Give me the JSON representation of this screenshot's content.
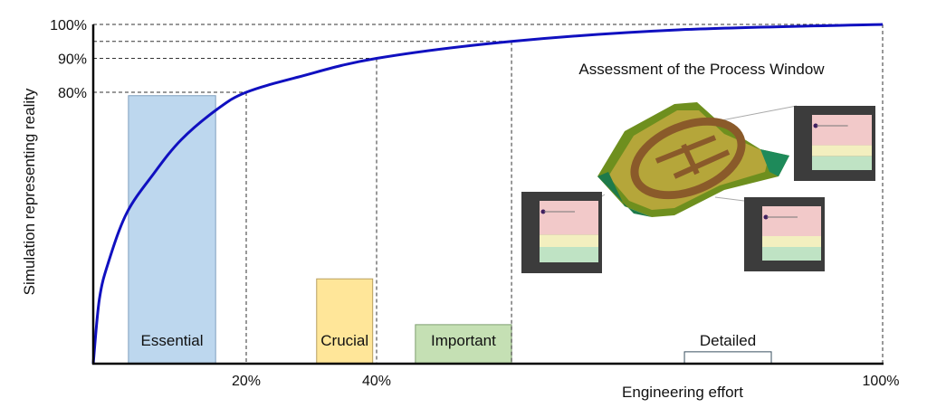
{
  "chart_data": {
    "type": "line",
    "title": "",
    "xlabel": "Engineering effort",
    "ylabel": "Simulation representing reality",
    "x_ticks": [
      "20%",
      "40%",
      "100%"
    ],
    "y_ticks": [
      "80%",
      "90%",
      "100%"
    ],
    "ylim": [
      0,
      100
    ],
    "xlim": [
      0,
      100
    ],
    "grid": false,
    "curve_color": "#1010c0",
    "series": [
      {
        "x": [
          0,
          0.8,
          2,
          4.4,
          7.9,
          11.5,
          16.2,
          20,
          28,
          40,
          56,
          75.8,
          100
        ],
        "y": [
          0,
          19,
          30,
          44.5,
          56,
          66,
          75,
          80,
          84.5,
          90,
          95,
          98.4,
          100
        ]
      }
    ],
    "reference_points": [
      {
        "x": 20,
        "y": 80
      },
      {
        "x": 40,
        "y": 90
      },
      {
        "x": 56,
        "y": 95
      },
      {
        "x": 100,
        "y": 100
      }
    ],
    "bars": [
      {
        "label": "Essential",
        "x_start": 4.6,
        "x_end": 16,
        "value": 79,
        "color": "#bdd7ee",
        "stroke": "#7f9fbf"
      },
      {
        "label": "Crucial",
        "x_start": 30.8,
        "x_end": 39.4,
        "value": 25,
        "color": "#ffe699",
        "stroke": "#b8a060"
      },
      {
        "label": "Important",
        "x_start": 44.6,
        "x_end": 56,
        "value": 11.5,
        "color": "#c5e0b4",
        "stroke": "#7f9f70"
      },
      {
        "label": "Detailed",
        "x_start": 76.5,
        "x_end": 86.8,
        "value": 3.5,
        "color": "#ffffff",
        "stroke": "#3a5060"
      }
    ],
    "annotation": "Assessment of the Process Window"
  }
}
